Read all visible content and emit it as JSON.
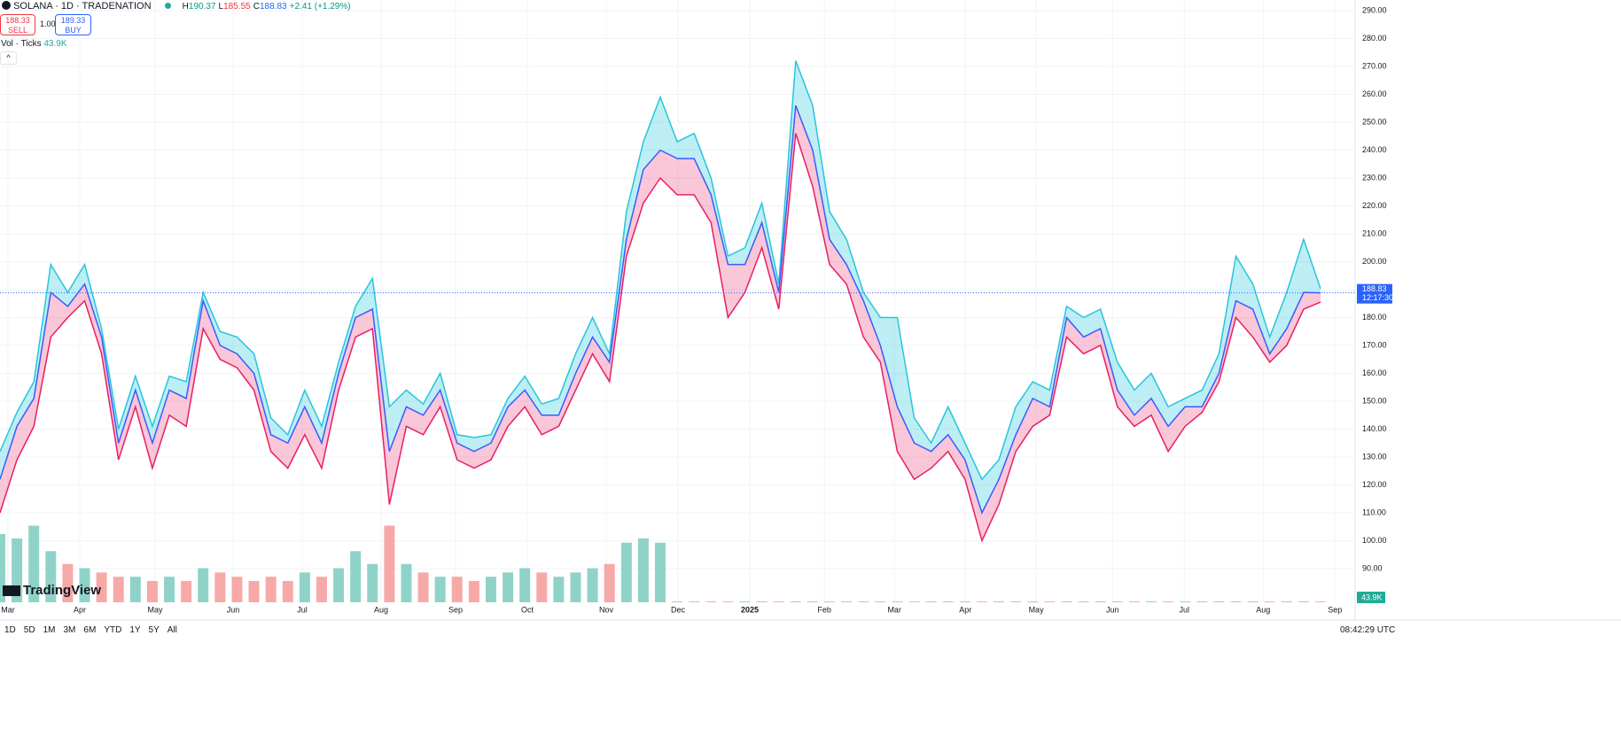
{
  "header": {
    "symbol": "SOLANA · 1D · TRADENATION",
    "high_label": "H",
    "high": 190.37,
    "low_label": "L",
    "low": 185.55,
    "close_label": "C",
    "close": 188.83,
    "change": "+2.41 (+1.29%)"
  },
  "trade": {
    "sell_price": 188.33,
    "sell": "SELL",
    "qty": "1.00",
    "buy_price": 189.33,
    "buy": "BUY"
  },
  "volume_legend": {
    "label": "Vol · Ticks",
    "value": "43.9K"
  },
  "logo": "TradingView",
  "chart_data": {
    "type": "hlc_area",
    "series": [
      {
        "color": "#26c6da",
        "values": [
          132,
          146,
          157,
          199,
          189,
          199,
          176,
          140,
          159,
          141,
          159,
          157,
          189,
          175,
          173,
          167,
          144,
          138,
          154,
          141,
          164,
          184,
          194,
          148,
          154,
          149,
          160,
          138,
          137,
          138,
          151,
          159,
          149,
          151,
          167,
          180,
          167,
          218,
          243,
          259,
          243,
          246,
          230,
          202,
          205,
          221,
          192,
          272,
          256,
          218,
          208,
          189,
          180,
          180,
          144,
          135,
          148,
          135,
          122,
          129,
          148,
          157,
          154,
          184,
          180,
          183,
          164,
          154,
          160,
          148,
          151,
          154,
          167,
          202,
          192,
          173,
          189,
          208,
          190.37
        ]
      },
      {
        "color": "#3d5afe",
        "values": [
          122,
          141,
          151,
          189,
          184,
          192,
          173,
          135,
          154,
          135,
          154,
          151,
          186,
          170,
          167,
          160,
          138,
          135,
          148,
          135,
          160,
          180,
          183,
          132,
          148,
          145,
          154,
          135,
          132,
          135,
          148,
          154,
          145,
          145,
          160,
          173,
          164,
          208,
          233,
          240,
          237,
          237,
          224,
          199,
          199,
          214,
          189,
          256,
          240,
          208,
          199,
          186,
          170,
          148,
          135,
          132,
          138,
          129,
          110,
          122,
          138,
          151,
          148,
          180,
          173,
          176,
          154,
          145,
          151,
          141,
          148,
          148,
          160,
          186,
          183,
          167,
          176,
          189,
          188.83
        ]
      },
      {
        "color": "#e91e63",
        "values": [
          110,
          129,
          141,
          173,
          180,
          186,
          167,
          129,
          148,
          126,
          145,
          141,
          176,
          165,
          162,
          154,
          132,
          126,
          138,
          126,
          154,
          173,
          176,
          113,
          141,
          138,
          148,
          129,
          126,
          129,
          141,
          148,
          138,
          141,
          154,
          167,
          157,
          202,
          221,
          230,
          224,
          224,
          214,
          180,
          189,
          205,
          183,
          246,
          227,
          199,
          192,
          173,
          164,
          132,
          122,
          126,
          132,
          122,
          100,
          113,
          132,
          141,
          145,
          173,
          167,
          170,
          148,
          141,
          145,
          132,
          141,
          146,
          157,
          180,
          173,
          164,
          170,
          183,
          185.55
        ]
      }
    ],
    "volume": {
      "color_up": "#8fd3c8",
      "color_down": "#f7a9a7",
      "ylim": [
        0,
        130
      ],
      "values": [
        80,
        75,
        90,
        60,
        45,
        40,
        35,
        30,
        30,
        25,
        30,
        25,
        40,
        35,
        30,
        25,
        30,
        25,
        35,
        30,
        40,
        60,
        45,
        90,
        45,
        35,
        30,
        30,
        25,
        30,
        35,
        40,
        35,
        30,
        35,
        40,
        45,
        70,
        75,
        70,
        1,
        1,
        1,
        1,
        1,
        1,
        1,
        1,
        1,
        1,
        1,
        1,
        1,
        1,
        1,
        1,
        1,
        1,
        1,
        1,
        1,
        1,
        1,
        1,
        1,
        1,
        1,
        1,
        1,
        1,
        1,
        1,
        1,
        1,
        1,
        1,
        1,
        1,
        1
      ]
    },
    "xlim": [
      0,
      78
    ],
    "xticks": [
      {
        "value": 0.47,
        "label": "Mar"
      },
      {
        "value": 4.71,
        "label": "Apr"
      },
      {
        "value": 9.16,
        "label": "May"
      },
      {
        "value": 13.77,
        "label": "Jun"
      },
      {
        "value": 17.85,
        "label": "Jul"
      },
      {
        "value": 22.51,
        "label": "Aug"
      },
      {
        "value": 26.91,
        "label": "Sep"
      },
      {
        "value": 31.15,
        "label": "Oct"
      },
      {
        "value": 35.81,
        "label": "Nov"
      },
      {
        "value": 40.05,
        "label": "Dec"
      },
      {
        "value": 44.29,
        "label": "2025"
      },
      {
        "value": 48.69,
        "label": "Feb"
      },
      {
        "value": 52.83,
        "label": "Mar"
      },
      {
        "value": 57.02,
        "label": "Apr"
      },
      {
        "value": 61.2,
        "label": "May"
      },
      {
        "value": 65.71,
        "label": "Jun"
      },
      {
        "value": 69.95,
        "label": "Jul"
      },
      {
        "value": 74.61,
        "label": "Aug"
      },
      {
        "value": 78.85,
        "label": "Sep"
      }
    ],
    "ylim": [
      90,
      290
    ],
    "yticks": [
      {
        "value": 90,
        "label": "90.00"
      },
      {
        "value": 100,
        "label": "100.00"
      },
      {
        "value": 110,
        "label": "110.00"
      },
      {
        "value": 120,
        "label": "120.00"
      },
      {
        "value": 130,
        "label": "130.00"
      },
      {
        "value": 140,
        "label": "140.00"
      },
      {
        "value": 150,
        "label": "150.00"
      },
      {
        "value": 160,
        "label": "160.00"
      },
      {
        "value": 170,
        "label": "170.00"
      },
      {
        "value": 180,
        "label": "180.00"
      },
      {
        "value": 190,
        "label": "190.00"
      },
      {
        "value": 200,
        "label": "200.00"
      },
      {
        "value": 210,
        "label": "210.00"
      },
      {
        "value": 220,
        "label": "220.00"
      },
      {
        "value": 230,
        "label": "230.00"
      },
      {
        "value": 240,
        "label": "240.00"
      },
      {
        "value": 250,
        "label": "250.00"
      },
      {
        "value": 260,
        "label": "260.00"
      },
      {
        "value": 270,
        "label": "270.00"
      },
      {
        "value": 280,
        "label": "280.00"
      },
      {
        "value": 290,
        "label": "290.00"
      }
    ],
    "grid": true,
    "last_price": 188.83,
    "countdown": "12:17:30",
    "last_volume": "43.9K"
  },
  "toolbar": {
    "ranges": [
      "1D",
      "5D",
      "1M",
      "3M",
      "6M",
      "YTD",
      "1Y",
      "5Y",
      "All"
    ],
    "clock": "08:42:29 UTC"
  }
}
